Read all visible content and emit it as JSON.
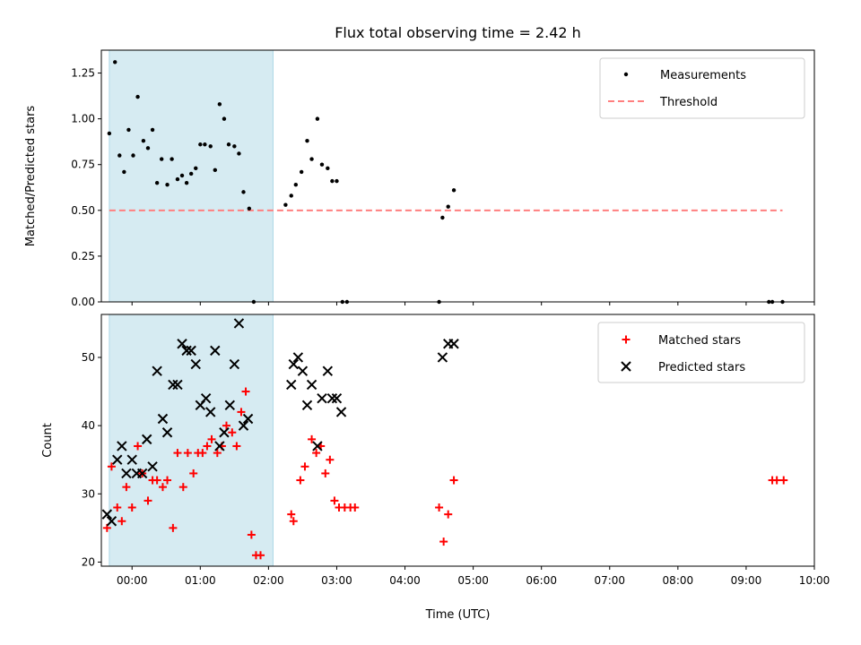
{
  "chart_data": [
    {
      "type": "scatter",
      "title": "Flux total observing time = 2.42 h",
      "xlabel": "",
      "ylabel": "Matched/Predicted stars",
      "ylim": [
        0,
        1.375
      ],
      "xlim": [
        "-00:27",
        "10:00"
      ],
      "y_ticks": [
        "0.00",
        "0.25",
        "0.50",
        "0.75",
        "1.00",
        "1.25"
      ],
      "shaded_span": [
        "-00:20",
        "02:04"
      ],
      "legend_position": "upper right",
      "legend": [
        "Measurements",
        "Threshold"
      ],
      "threshold": {
        "name": "Threshold",
        "value": 0.5,
        "x_from": "-00:20",
        "x_to": "09:32",
        "color": "#ff7f7f"
      },
      "series": [
        {
          "name": "Measurements",
          "color": "#000000",
          "points": [
            [
              "-00:20",
              0.92
            ],
            [
              "-00:15",
              1.31
            ],
            [
              "-00:11",
              0.8
            ],
            [
              "-00:07",
              0.71
            ],
            [
              "-00:03",
              0.94
            ],
            [
              "00:01",
              0.8
            ],
            [
              "00:05",
              1.12
            ],
            [
              "00:10",
              0.88
            ],
            [
              "00:14",
              0.84
            ],
            [
              "00:18",
              0.94
            ],
            [
              "00:22",
              0.65
            ],
            [
              "00:26",
              0.78
            ],
            [
              "00:31",
              0.64
            ],
            [
              "00:35",
              0.78
            ],
            [
              "00:40",
              0.67
            ],
            [
              "00:44",
              0.69
            ],
            [
              "00:48",
              0.65
            ],
            [
              "00:52",
              0.7
            ],
            [
              "00:56",
              0.73
            ],
            [
              "01:00",
              0.86
            ],
            [
              "01:04",
              0.86
            ],
            [
              "01:09",
              0.85
            ],
            [
              "01:13",
              0.72
            ],
            [
              "01:17",
              1.08
            ],
            [
              "01:21",
              1.0
            ],
            [
              "01:25",
              0.86
            ],
            [
              "01:30",
              0.85
            ],
            [
              "01:34",
              0.81
            ],
            [
              "01:38",
              0.6
            ],
            [
              "01:43",
              0.51
            ],
            [
              "01:47",
              0.0
            ],
            [
              "02:15",
              0.53
            ],
            [
              "02:20",
              0.58
            ],
            [
              "02:24",
              0.64
            ],
            [
              "02:29",
              0.71
            ],
            [
              "02:34",
              0.88
            ],
            [
              "02:38",
              0.78
            ],
            [
              "02:43",
              1.0
            ],
            [
              "02:47",
              0.75
            ],
            [
              "02:52",
              0.73
            ],
            [
              "02:56",
              0.66
            ],
            [
              "03:00",
              0.66
            ],
            [
              "03:05",
              0.0
            ],
            [
              "03:09",
              0.0
            ],
            [
              "04:30",
              0.0
            ],
            [
              "04:33",
              0.46
            ],
            [
              "04:38",
              0.52
            ],
            [
              "04:43",
              0.61
            ],
            [
              "09:20",
              0.0
            ],
            [
              "09:23",
              0.0
            ],
            [
              "09:32",
              0.0
            ]
          ]
        }
      ]
    },
    {
      "type": "scatter",
      "title": "",
      "xlabel": "Time (UTC)",
      "ylabel": "Count",
      "ylim": [
        19.4,
        56.3
      ],
      "xlim": [
        "-00:27",
        "10:00"
      ],
      "x_ticks": [
        "00:00",
        "01:00",
        "02:00",
        "03:00",
        "04:00",
        "05:00",
        "06:00",
        "07:00",
        "08:00",
        "09:00",
        "10:00"
      ],
      "y_ticks": [
        "20",
        "30",
        "40",
        "50"
      ],
      "shaded_span": [
        "-00:20",
        "02:04"
      ],
      "legend_position": "upper right",
      "legend": [
        "Matched stars",
        "Predicted stars"
      ],
      "series": [
        {
          "name": "Matched stars",
          "marker": "+",
          "color": "#ff0000",
          "points": [
            [
              "-00:22",
              25
            ],
            [
              "-00:18",
              34
            ],
            [
              "-00:13",
              28
            ],
            [
              "-00:09",
              26
            ],
            [
              "-00:05",
              31
            ],
            [
              "00:00",
              28
            ],
            [
              "00:05",
              37
            ],
            [
              "00:09",
              33
            ],
            [
              "00:14",
              29
            ],
            [
              "00:18",
              32
            ],
            [
              "00:22",
              32
            ],
            [
              "00:27",
              31
            ],
            [
              "00:31",
              32
            ],
            [
              "00:36",
              25
            ],
            [
              "00:40",
              36
            ],
            [
              "00:45",
              31
            ],
            [
              "00:49",
              36
            ],
            [
              "00:54",
              33
            ],
            [
              "00:58",
              36
            ],
            [
              "01:02",
              36
            ],
            [
              "01:06",
              37
            ],
            [
              "01:10",
              38
            ],
            [
              "01:15",
              36
            ],
            [
              "01:19",
              37
            ],
            [
              "01:23",
              40
            ],
            [
              "01:28",
              39
            ],
            [
              "01:32",
              37
            ],
            [
              "01:36",
              42
            ],
            [
              "01:40",
              45
            ],
            [
              "01:45",
              24
            ],
            [
              "01:49",
              21
            ],
            [
              "01:53",
              21
            ],
            [
              "02:20",
              27
            ],
            [
              "02:22",
              26
            ],
            [
              "02:28",
              32
            ],
            [
              "02:32",
              34
            ],
            [
              "02:38",
              38
            ],
            [
              "02:42",
              36
            ],
            [
              "02:46",
              37
            ],
            [
              "02:50",
              33
            ],
            [
              "02:54",
              35
            ],
            [
              "02:58",
              29
            ],
            [
              "03:02",
              28
            ],
            [
              "03:07",
              28
            ],
            [
              "03:12",
              28
            ],
            [
              "03:16",
              28
            ],
            [
              "04:30",
              28
            ],
            [
              "04:34",
              23
            ],
            [
              "04:38",
              27
            ],
            [
              "04:43",
              32
            ],
            [
              "09:23",
              32
            ],
            [
              "09:27",
              32
            ],
            [
              "09:33",
              32
            ]
          ]
        },
        {
          "name": "Predicted stars",
          "marker": "x",
          "color": "#000000",
          "points": [
            [
              "-00:22",
              27
            ],
            [
              "-00:18",
              26
            ],
            [
              "-00:13",
              35
            ],
            [
              "-00:09",
              37
            ],
            [
              "-00:05",
              33
            ],
            [
              "00:00",
              35
            ],
            [
              "00:04",
              33
            ],
            [
              "00:09",
              33
            ],
            [
              "00:13",
              38
            ],
            [
              "00:18",
              34
            ],
            [
              "00:22",
              48
            ],
            [
              "00:27",
              41
            ],
            [
              "00:31",
              39
            ],
            [
              "00:36",
              46
            ],
            [
              "00:40",
              46
            ],
            [
              "00:44",
              52
            ],
            [
              "00:48",
              51
            ],
            [
              "00:52",
              51
            ],
            [
              "00:56",
              49
            ],
            [
              "01:00",
              43
            ],
            [
              "01:05",
              44
            ],
            [
              "01:09",
              42
            ],
            [
              "01:13",
              51
            ],
            [
              "01:17",
              37
            ],
            [
              "01:21",
              39
            ],
            [
              "01:26",
              43
            ],
            [
              "01:30",
              49
            ],
            [
              "01:34",
              55
            ],
            [
              "01:38",
              40
            ],
            [
              "01:42",
              41
            ],
            [
              "02:20",
              46
            ],
            [
              "02:22",
              49
            ],
            [
              "02:26",
              50
            ],
            [
              "02:30",
              48
            ],
            [
              "02:34",
              43
            ],
            [
              "02:38",
              46
            ],
            [
              "02:43",
              37
            ],
            [
              "02:47",
              44
            ],
            [
              "02:52",
              48
            ],
            [
              "02:56",
              44
            ],
            [
              "03:00",
              44
            ],
            [
              "03:04",
              42
            ],
            [
              "04:33",
              50
            ],
            [
              "04:38",
              52
            ],
            [
              "04:43",
              52
            ]
          ]
        }
      ]
    }
  ]
}
